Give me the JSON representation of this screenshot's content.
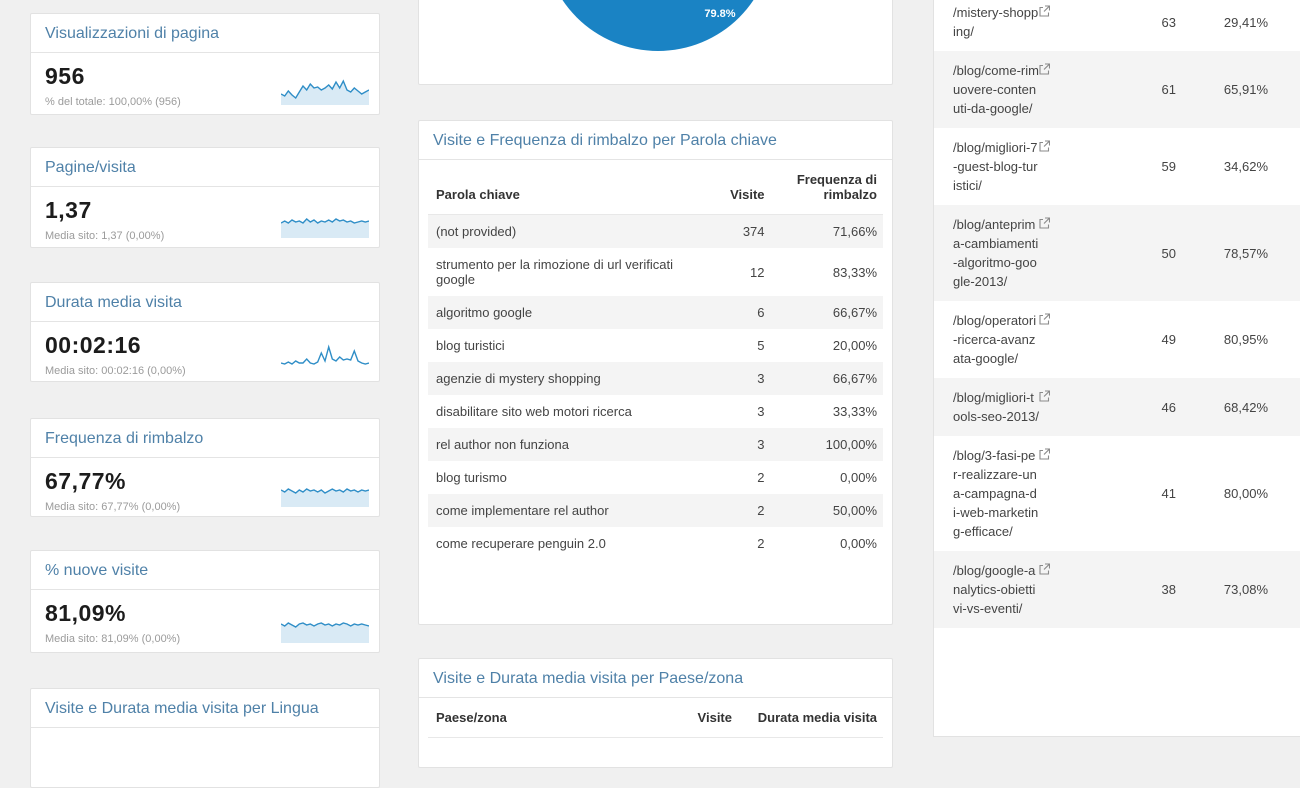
{
  "colors": {
    "page_background": "#f0f0f0",
    "card_background": "#ffffff",
    "card_border": "#e2e2e2",
    "title_link_blue": "#4f81a8",
    "sparkline_blue": "#2f8ec7",
    "sparkline_fill": "#d9eaf5",
    "pie_blue": "#1a83c4",
    "alt_row_gray": "#f4f4f4",
    "value_text": "#1c1c1c",
    "subtitle_gray": "#9b9b9b"
  },
  "icons": {
    "external_link": "boxed-arrow-open-in-new"
  },
  "left_cards": [
    {
      "title": "Visualizzazioni di pagina",
      "value": "956",
      "subtitle": "% del totale: 100,00% (956)",
      "spark": [
        19,
        21,
        16,
        20,
        23,
        17,
        11,
        15,
        9,
        13,
        12,
        15,
        13,
        10,
        14,
        7,
        13,
        6,
        15,
        17,
        13,
        16,
        19,
        17,
        15
      ],
      "fill": "1"
    },
    {
      "title": "Pagine/visita",
      "value": "1,37",
      "subtitle": "Media sito: 1,37 (0,00%)",
      "spark": [
        15,
        13,
        15,
        12,
        14,
        13,
        15,
        11,
        14,
        12,
        15,
        13,
        14,
        12,
        14,
        11,
        13,
        12,
        14,
        13,
        15,
        14,
        13,
        14,
        13
      ],
      "fill": "1"
    },
    {
      "title": "Durata media visita",
      "value": "00:02:16",
      "subtitle": "Media sito: 00:02:16 (0,00%)",
      "spark": [
        21,
        22,
        20,
        22,
        19,
        21,
        21,
        17,
        21,
        22,
        20,
        11,
        19,
        5,
        17,
        19,
        15,
        18,
        17,
        18,
        9,
        19,
        21,
        22,
        21
      ],
      "fill": "0"
    },
    {
      "title": "Frequenza di rimbalzo",
      "value": "67,77%",
      "subtitle": "Media sito: 67,77% (0,00%)",
      "spark": [
        13,
        15,
        12,
        14,
        16,
        13,
        15,
        12,
        14,
        13,
        15,
        13,
        16,
        14,
        12,
        14,
        13,
        15,
        12,
        14,
        13,
        15,
        13,
        14,
        13
      ],
      "fill": "1"
    },
    {
      "title": "% nuove visite",
      "value": "81,09%",
      "subtitle": "Media sito: 81,09% (0,00%)",
      "spark": [
        11,
        13,
        10,
        12,
        14,
        11,
        10,
        12,
        11,
        13,
        11,
        10,
        12,
        11,
        13,
        11,
        12,
        10,
        11,
        13,
        11,
        12,
        11,
        12,
        13
      ],
      "fill": "1"
    }
  ],
  "lingua_card": {
    "title": "Visite e Durata media visita per Lingua"
  },
  "pie_card": {
    "label": "79.8%"
  },
  "keyword_table": {
    "title": "Visite e Frequenza di rimbalzo per Parola chiave",
    "columns": [
      "Parola chiave",
      "Visite",
      "Frequenza di rimbalzo"
    ],
    "rows": [
      {
        "keyword": "(not provided)",
        "visits": "374",
        "bounce": "71,66%"
      },
      {
        "keyword": "strumento per la rimozione di url verificati google",
        "visits": "12",
        "bounce": "83,33%"
      },
      {
        "keyword": "algoritmo google",
        "visits": "6",
        "bounce": "66,67%"
      },
      {
        "keyword": "blog turistici",
        "visits": "5",
        "bounce": "20,00%"
      },
      {
        "keyword": "agenzie di mystery shopping",
        "visits": "3",
        "bounce": "66,67%"
      },
      {
        "keyword": "disabilitare sito web motori ricerca",
        "visits": "3",
        "bounce": "33,33%"
      },
      {
        "keyword": "rel author non funziona",
        "visits": "3",
        "bounce": "100,00%"
      },
      {
        "keyword": "blog turismo",
        "visits": "2",
        "bounce": "0,00%"
      },
      {
        "keyword": "come implementare rel author",
        "visits": "2",
        "bounce": "50,00%"
      },
      {
        "keyword": "come recuperare penguin 2.0",
        "visits": "2",
        "bounce": "0,00%"
      }
    ]
  },
  "country_table": {
    "title": "Visite e Durata media visita per Paese/zona",
    "columns": [
      "Paese/zona",
      "Visite",
      "Durata media visita"
    ]
  },
  "pages_table": {
    "rows": [
      {
        "url": "/mistery-shopping/",
        "visits": "63",
        "bounce": "29,41%"
      },
      {
        "url": "/blog/come-rimuovere-contenuti-da-google/",
        "visits": "61",
        "bounce": "65,91%"
      },
      {
        "url": "/blog/migliori-7-guest-blog-turistici/",
        "visits": "59",
        "bounce": "34,62%"
      },
      {
        "url": "/blog/anteprima-cambiamenti-algoritmo-google-2013/",
        "visits": "50",
        "bounce": "78,57%"
      },
      {
        "url": "/blog/operatori-ricerca-avanzata-google/",
        "visits": "49",
        "bounce": "80,95%"
      },
      {
        "url": "/blog/migliori-tools-seo-2013/",
        "visits": "46",
        "bounce": "68,42%"
      },
      {
        "url": "/blog/3-fasi-per-realizzare-una-campagna-di-web-marketing-efficace/",
        "visits": "41",
        "bounce": "80,00%"
      },
      {
        "url": "/blog/google-analytics-obiettivi-vs-eventi/",
        "visits": "38",
        "bounce": "73,08%"
      }
    ]
  },
  "chart_data": {
    "type": "pie",
    "title": "",
    "categories": [
      "slice-blue"
    ],
    "values": [
      79.8
    ],
    "labels_visible": [
      "79.8%"
    ],
    "note": "only bottom portion of pie visible; blue slice labeled 79.8%"
  }
}
